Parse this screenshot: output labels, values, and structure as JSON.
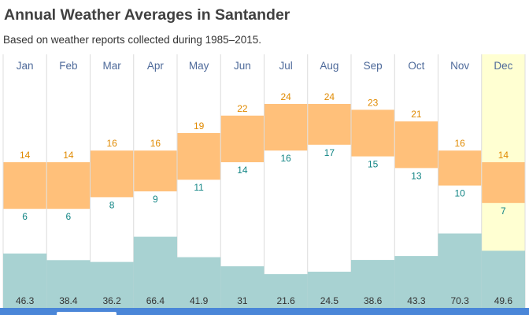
{
  "header": {
    "title": "Annual Weather Averages in Santander",
    "subtitle": "Based on weather reports collected during 1985–2015."
  },
  "colors": {
    "temp_band": "#ffc07a",
    "high_label": "#e08a00",
    "low_label": "#128585",
    "precip_bar": "#a8d2d2",
    "month_label": "#4e6a9a",
    "precip_label": "#333333",
    "highlight_bg": "#ffffd2",
    "grid": "#dcdcdc",
    "bottom_bar": "#4a86d8"
  },
  "chart_data": {
    "type": "bar",
    "categories": [
      "Jan",
      "Feb",
      "Mar",
      "Apr",
      "May",
      "Jun",
      "Jul",
      "Aug",
      "Sep",
      "Oct",
      "Nov",
      "Dec"
    ],
    "series": [
      {
        "values": [
          14,
          14,
          16,
          16,
          19,
          22,
          24,
          24,
          23,
          21,
          16,
          14
        ]
      },
      {
        "values": [
          6,
          6,
          8,
          9,
          11,
          14,
          16,
          17,
          15,
          13,
          10,
          7
        ]
      },
      {
        "values": [
          46.3,
          38.4,
          36.2,
          66.4,
          41.9,
          31,
          21.6,
          24.5,
          38.6,
          43.3,
          70.3,
          49.6
        ]
      }
    ],
    "highlighted_month": "Dec"
  }
}
